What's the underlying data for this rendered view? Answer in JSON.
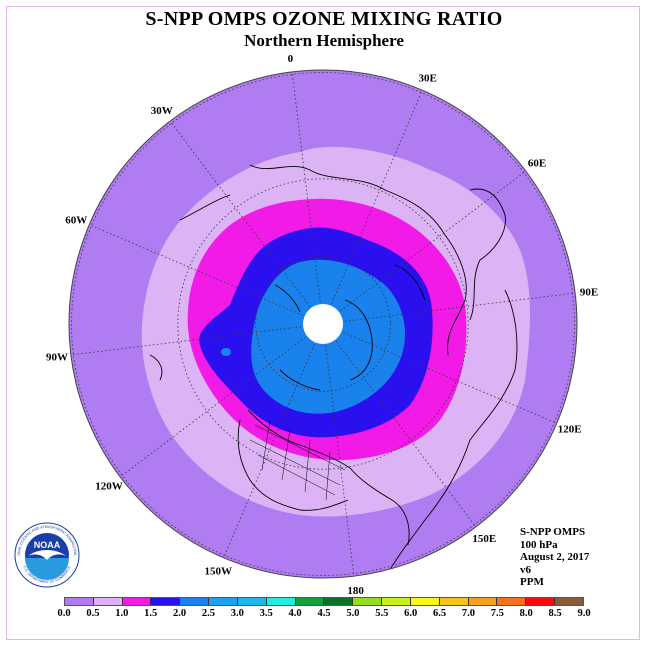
{
  "header": {
    "title": "S-NPP OMPS OZONE MIXING RATIO",
    "subtitle": "Northern Hemisphere"
  },
  "map": {
    "projection": "north-polar-stereographic",
    "hemisphere": "Northern",
    "longitude_labels": [
      {
        "lon": 90,
        "text": "90E"
      },
      {
        "lon": 60,
        "text": "60E"
      },
      {
        "lon": 30,
        "text": "30E"
      },
      {
        "lon": 0,
        "text": "0"
      },
      {
        "lon": -30,
        "text": "30W"
      },
      {
        "lon": -60,
        "text": "60W"
      },
      {
        "lon": -90,
        "text": "90W"
      },
      {
        "lon": -120,
        "text": "120W"
      },
      {
        "lon": -150,
        "text": "150W"
      },
      {
        "lon": 180,
        "text": "180"
      },
      {
        "lon": 150,
        "text": "150E"
      },
      {
        "lon": 120,
        "text": "120E"
      }
    ],
    "graticule_longitude_step_deg": 30,
    "graticule_latitudes_deg": [
      0,
      30,
      60
    ],
    "missing_data_region": "pole",
    "contour_colors": {
      "0.0-0.5": "#b07cf2",
      "0.5-1.0": "#dcb4f6",
      "1.0-1.5": "#f21ae6",
      "1.5-2.0": "#2a10ee",
      "2.0-2.5": "#1a82ec"
    }
  },
  "info": {
    "instrument": "S-NPP OMPS",
    "level": "100 hPa",
    "date": "August 2, 2017",
    "version": "v6",
    "units": "PPM"
  },
  "colorbar": {
    "colors": [
      "#b07cf2",
      "#dcb4f6",
      "#f21ae6",
      "#2a10ee",
      "#1a82ec",
      "#1aa2f0",
      "#1ab6f0",
      "#1cf0dc",
      "#10a040",
      "#0a7030",
      "#96dc1a",
      "#c8f01a",
      "#f8f81a",
      "#f8c41a",
      "#f8a01a",
      "#f87018",
      "#f80a0a",
      "#8a5a3a"
    ],
    "tick_labels": [
      "0.0",
      "0.5",
      "1.0",
      "1.5",
      "2.0",
      "2.5",
      "3.0",
      "3.5",
      "4.0",
      "4.5",
      "5.0",
      "5.5",
      "6.0",
      "6.5",
      "7.0",
      "7.5",
      "8.0",
      "8.5",
      "9.0"
    ]
  },
  "logo": {
    "text": "NOAA",
    "ring_text": "NATIONAL OCEANIC AND ATMOSPHERIC ADMINISTRATION",
    "ring_text_bottom": "U.S. DEPARTMENT OF COMMERCE",
    "colors": {
      "outer": "#ffffff",
      "ring": "#1a3ea8",
      "sea": "#2a9ae0",
      "bird": "#ffffff"
    }
  }
}
